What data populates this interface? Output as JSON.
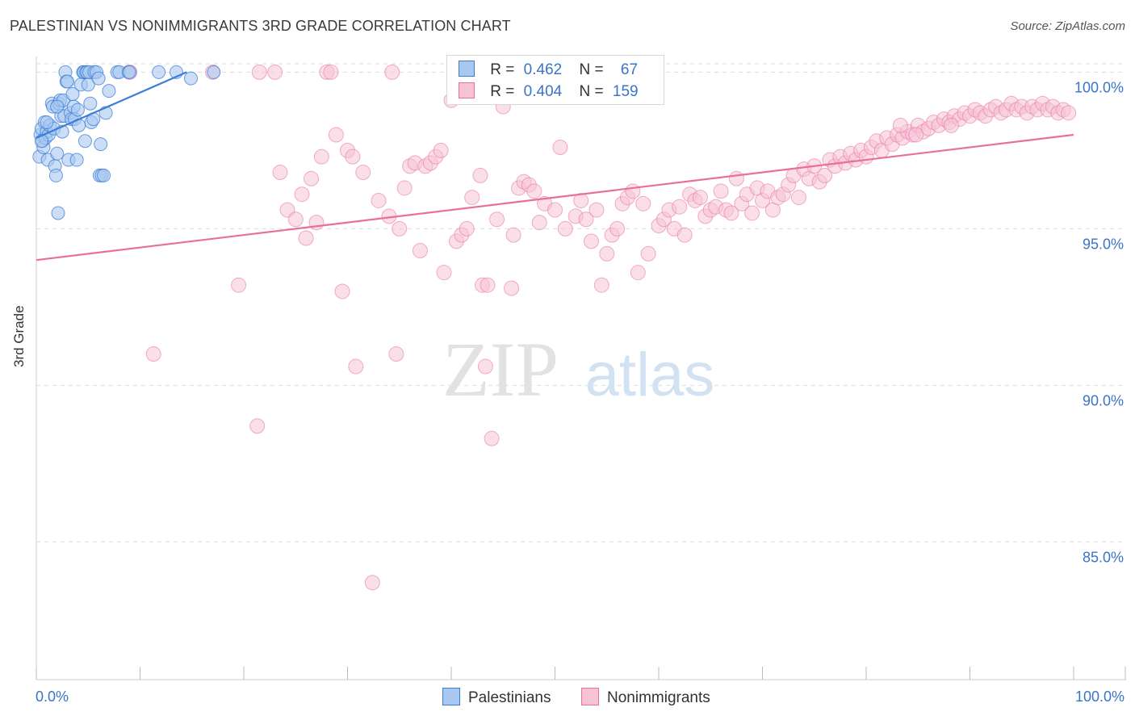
{
  "title": "PALESTINIAN VS NONIMMIGRANTS 3RD GRADE CORRELATION CHART",
  "source": "Source: ZipAtlas.com",
  "watermark": {
    "zip": "ZIP",
    "atlas": "atlas"
  },
  "legend": {
    "series1": {
      "r_label": "R =",
      "r_value": "0.462",
      "n_label": "N =",
      "n_value": "67"
    },
    "series2": {
      "r_label": "R =",
      "r_value": "0.404",
      "n_label": "N =",
      "n_value": "159"
    }
  },
  "bottom_legend": {
    "series1": "Palestinians",
    "series2": "Nonimmigrants"
  },
  "colors": {
    "blue": "#3b7dd8",
    "blue_fill": "#a9c8f0",
    "pink": "#e8709a",
    "pink_fill": "#f6c3d5",
    "tick_text": "#3a74c8"
  },
  "chart_data": {
    "type": "scatter",
    "title": "PALESTINIAN VS NONIMMIGRANTS 3RD GRADE CORRELATION CHART",
    "xlabel": "",
    "ylabel": "3rd Grade",
    "xlim": [
      0,
      100
    ],
    "ylim": [
      80.6,
      100.5
    ],
    "x_tick_labels": [
      "0.0%",
      "100.0%"
    ],
    "y_ticks": [
      85,
      90,
      95,
      100
    ],
    "y_tick_labels": [
      "85.0%",
      "90.0%",
      "95.0%",
      "100.0%"
    ],
    "series": [
      {
        "name": "Palestinians",
        "trend": {
          "x": [
            0,
            14.5
          ],
          "y": [
            97.9,
            100.0
          ]
        },
        "points": [
          [
            0.3,
            97.3
          ],
          [
            0.4,
            98.0
          ],
          [
            0.5,
            98.2
          ],
          [
            0.6,
            97.8
          ],
          [
            0.7,
            97.6
          ],
          [
            0.8,
            98.4
          ],
          [
            0.9,
            97.9
          ],
          [
            1.0,
            98.1
          ],
          [
            1.1,
            97.2
          ],
          [
            1.2,
            98.0
          ],
          [
            1.3,
            98.3
          ],
          [
            1.5,
            99.0
          ],
          [
            1.6,
            98.9
          ],
          [
            1.7,
            98.2
          ],
          [
            1.8,
            97.0
          ],
          [
            1.9,
            96.7
          ],
          [
            2.0,
            97.4
          ],
          [
            2.1,
            95.5
          ],
          [
            2.2,
            99.0
          ],
          [
            2.3,
            99.1
          ],
          [
            2.4,
            98.6
          ],
          [
            2.5,
            98.1
          ],
          [
            2.6,
            99.1
          ],
          [
            2.7,
            98.6
          ],
          [
            2.8,
            100.0
          ],
          [
            2.9,
            99.7
          ],
          [
            3.0,
            99.7
          ],
          [
            3.1,
            97.2
          ],
          [
            3.3,
            98.7
          ],
          [
            3.4,
            98.5
          ],
          [
            3.5,
            99.3
          ],
          [
            3.6,
            98.9
          ],
          [
            3.7,
            98.5
          ],
          [
            3.9,
            97.2
          ],
          [
            4.0,
            98.8
          ],
          [
            4.1,
            98.3
          ],
          [
            4.3,
            99.6
          ],
          [
            4.5,
            100.0
          ],
          [
            4.6,
            100.0
          ],
          [
            4.7,
            97.8
          ],
          [
            4.8,
            100.0
          ],
          [
            4.9,
            100.0
          ],
          [
            5.0,
            99.6
          ],
          [
            5.1,
            100.0
          ],
          [
            5.2,
            99.0
          ],
          [
            5.3,
            98.4
          ],
          [
            5.5,
            98.5
          ],
          [
            5.6,
            100.0
          ],
          [
            5.8,
            100.0
          ],
          [
            6.0,
            99.8
          ],
          [
            6.1,
            96.7
          ],
          [
            6.2,
            97.7
          ],
          [
            6.3,
            96.7
          ],
          [
            6.5,
            96.7
          ],
          [
            6.7,
            98.7
          ],
          [
            7.0,
            99.4
          ],
          [
            7.8,
            100.0
          ],
          [
            8.0,
            100.0
          ],
          [
            8.9,
            100.0
          ],
          [
            9.0,
            100.0
          ],
          [
            11.8,
            100.0
          ],
          [
            13.5,
            100.0
          ],
          [
            14.9,
            99.8
          ],
          [
            17.1,
            100.0
          ],
          [
            0.5,
            97.8
          ],
          [
            1.0,
            98.4
          ],
          [
            2.0,
            98.9
          ]
        ]
      },
      {
        "name": "Nonimmigrants",
        "trend": {
          "x": [
            0,
            100
          ],
          "y": [
            94.0,
            98.0
          ]
        },
        "points": [
          [
            9.0,
            100.0
          ],
          [
            11.3,
            91.0
          ],
          [
            17.0,
            100.0
          ],
          [
            19.5,
            93.2
          ],
          [
            21.3,
            88.7
          ],
          [
            21.5,
            100.0
          ],
          [
            23.0,
            100.0
          ],
          [
            23.5,
            96.8
          ],
          [
            24.2,
            95.6
          ],
          [
            25.0,
            95.3
          ],
          [
            25.6,
            96.1
          ],
          [
            26.0,
            94.7
          ],
          [
            26.5,
            96.6
          ],
          [
            27.0,
            95.2
          ],
          [
            27.5,
            97.3
          ],
          [
            28.0,
            100.0
          ],
          [
            28.4,
            100.0
          ],
          [
            28.9,
            98.0
          ],
          [
            29.5,
            93.0
          ],
          [
            30.0,
            97.5
          ],
          [
            30.5,
            97.3
          ],
          [
            30.8,
            90.6
          ],
          [
            31.5,
            96.8
          ],
          [
            32.4,
            83.7
          ],
          [
            33.0,
            95.9
          ],
          [
            34.0,
            95.4
          ],
          [
            34.3,
            100.0
          ],
          [
            34.7,
            91.0
          ],
          [
            35.0,
            95.0
          ],
          [
            35.5,
            96.3
          ],
          [
            36.0,
            97.0
          ],
          [
            36.5,
            97.1
          ],
          [
            37.0,
            94.3
          ],
          [
            37.5,
            97.0
          ],
          [
            38.0,
            97.1
          ],
          [
            38.5,
            97.3
          ],
          [
            39.0,
            97.5
          ],
          [
            39.3,
            93.6
          ],
          [
            40.0,
            99.1
          ],
          [
            40.5,
            94.6
          ],
          [
            41.0,
            94.8
          ],
          [
            41.5,
            95.0
          ],
          [
            42.0,
            96.0
          ],
          [
            42.8,
            96.7
          ],
          [
            43.0,
            93.2
          ],
          [
            43.3,
            90.6
          ],
          [
            43.5,
            93.2
          ],
          [
            43.9,
            88.3
          ],
          [
            44.4,
            95.3
          ],
          [
            45.0,
            98.9
          ],
          [
            45.8,
            93.1
          ],
          [
            46.0,
            94.8
          ],
          [
            46.5,
            96.3
          ],
          [
            47.0,
            96.5
          ],
          [
            47.5,
            96.4
          ],
          [
            48.0,
            96.2
          ],
          [
            48.5,
            95.2
          ],
          [
            49.0,
            95.8
          ],
          [
            50.0,
            95.6
          ],
          [
            50.5,
            97.6
          ],
          [
            51.0,
            95.0
          ],
          [
            52.0,
            95.4
          ],
          [
            52.5,
            95.9
          ],
          [
            53.0,
            95.3
          ],
          [
            53.5,
            94.6
          ],
          [
            54.0,
            95.6
          ],
          [
            54.5,
            93.2
          ],
          [
            55.0,
            94.2
          ],
          [
            55.5,
            94.8
          ],
          [
            56.0,
            95.0
          ],
          [
            56.5,
            95.8
          ],
          [
            57.0,
            96.0
          ],
          [
            57.5,
            96.2
          ],
          [
            58.0,
            93.6
          ],
          [
            58.5,
            95.8
          ],
          [
            59.0,
            94.2
          ],
          [
            60.0,
            95.1
          ],
          [
            60.5,
            95.3
          ],
          [
            61.0,
            95.6
          ],
          [
            61.5,
            95.0
          ],
          [
            62.0,
            95.7
          ],
          [
            62.5,
            94.8
          ],
          [
            63.0,
            96.1
          ],
          [
            63.5,
            95.9
          ],
          [
            64.0,
            96.0
          ],
          [
            64.5,
            95.4
          ],
          [
            65.0,
            95.6
          ],
          [
            65.5,
            95.7
          ],
          [
            66.0,
            96.2
          ],
          [
            66.5,
            95.6
          ],
          [
            67.0,
            95.5
          ],
          [
            67.5,
            96.6
          ],
          [
            68.0,
            95.8
          ],
          [
            68.5,
            96.1
          ],
          [
            69.0,
            95.5
          ],
          [
            69.5,
            96.3
          ],
          [
            70.0,
            95.9
          ],
          [
            70.5,
            96.2
          ],
          [
            71.0,
            95.6
          ],
          [
            71.5,
            96.0
          ],
          [
            72.0,
            96.1
          ],
          [
            72.5,
            96.4
          ],
          [
            73.0,
            96.7
          ],
          [
            73.5,
            96.0
          ],
          [
            74.0,
            96.9
          ],
          [
            74.5,
            96.6
          ],
          [
            75.0,
            97.0
          ],
          [
            75.5,
            96.5
          ],
          [
            76.0,
            96.7
          ],
          [
            76.5,
            97.2
          ],
          [
            77.0,
            97.0
          ],
          [
            77.5,
            97.3
          ],
          [
            78.0,
            97.1
          ],
          [
            78.5,
            97.4
          ],
          [
            79.0,
            97.2
          ],
          [
            79.5,
            97.5
          ],
          [
            80.0,
            97.3
          ],
          [
            80.5,
            97.6
          ],
          [
            81.0,
            97.8
          ],
          [
            81.5,
            97.5
          ],
          [
            82.0,
            97.9
          ],
          [
            82.5,
            97.7
          ],
          [
            83.0,
            98.0
          ],
          [
            83.5,
            97.9
          ],
          [
            84.0,
            98.1
          ],
          [
            84.5,
            98.0
          ],
          [
            85.0,
            98.3
          ],
          [
            85.5,
            98.1
          ],
          [
            86.0,
            98.2
          ],
          [
            86.5,
            98.4
          ],
          [
            87.0,
            98.3
          ],
          [
            87.5,
            98.5
          ],
          [
            88.0,
            98.4
          ],
          [
            88.5,
            98.6
          ],
          [
            89.0,
            98.5
          ],
          [
            89.5,
            98.7
          ],
          [
            90.0,
            98.6
          ],
          [
            90.5,
            98.8
          ],
          [
            91.0,
            98.7
          ],
          [
            91.5,
            98.6
          ],
          [
            92.0,
            98.8
          ],
          [
            92.5,
            98.9
          ],
          [
            93.0,
            98.7
          ],
          [
            93.5,
            98.8
          ],
          [
            94.0,
            99.0
          ],
          [
            94.5,
            98.8
          ],
          [
            95.0,
            98.9
          ],
          [
            95.5,
            98.7
          ],
          [
            96.0,
            98.9
          ],
          [
            96.5,
            98.8
          ],
          [
            97.0,
            99.0
          ],
          [
            97.5,
            98.8
          ],
          [
            98.0,
            98.9
          ],
          [
            98.5,
            98.7
          ],
          [
            99.0,
            98.8
          ],
          [
            99.5,
            98.7
          ],
          [
            83.3,
            98.3
          ],
          [
            84.8,
            98.0
          ],
          [
            88.2,
            98.3
          ]
        ]
      }
    ]
  }
}
